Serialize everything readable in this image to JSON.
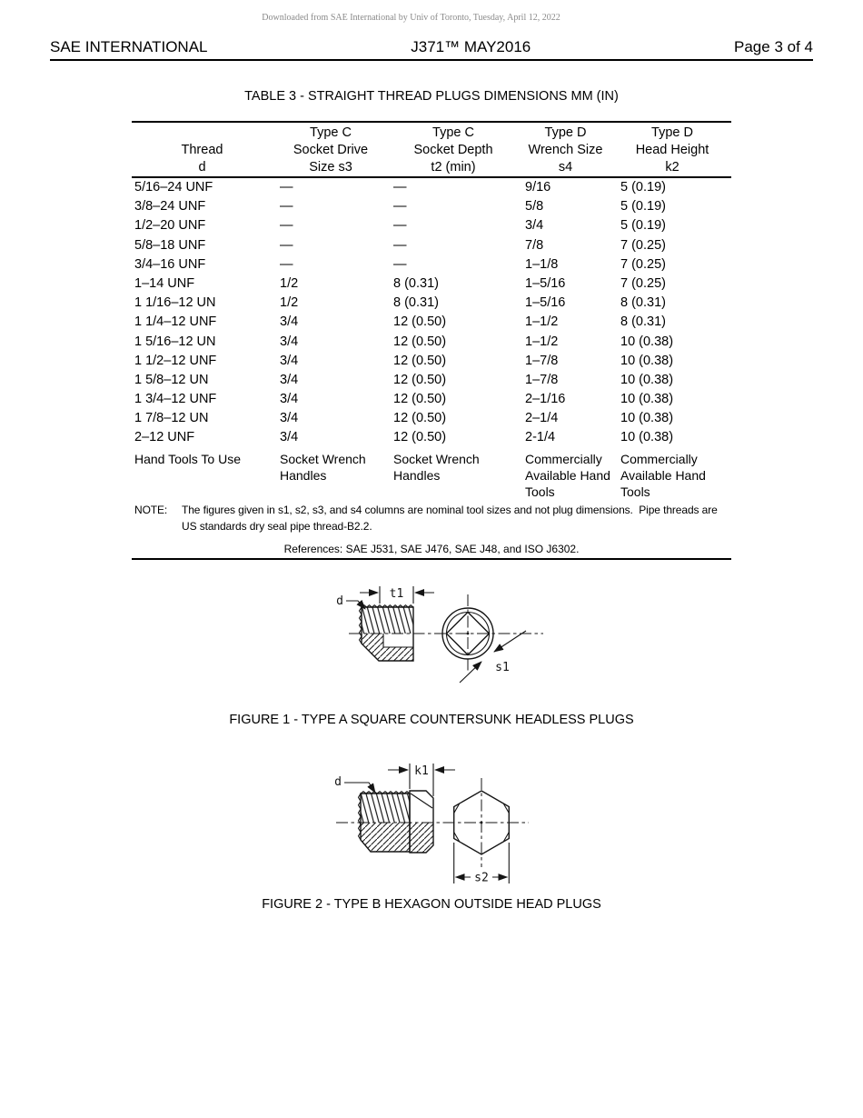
{
  "watermark": "Downloaded from SAE International by Univ of Toronto, Tuesday, April 12, 2022",
  "page_header": {
    "left": "SAE INTERNATIONAL",
    "center": "J371™ MAY2016",
    "right": "Page 3 of 4"
  },
  "table": {
    "title": "TABLE 3 - STRAIGHT THREAD PLUGS DIMENSIONS MM (IN)",
    "columns": [
      {
        "lines": [
          "",
          "Thread",
          "d"
        ]
      },
      {
        "lines": [
          "Type C",
          "Socket Drive",
          "Size s3"
        ]
      },
      {
        "lines": [
          "Type C",
          "Socket Depth",
          "t2 (min)"
        ]
      },
      {
        "lines": [
          "Type D",
          "Wrench Size",
          "s4"
        ]
      },
      {
        "lines": [
          "Type D",
          "Head Height",
          "k2"
        ]
      }
    ],
    "rows": [
      [
        "5/16–24 UNF",
        "—",
        "—",
        "9/16",
        "5 (0.19)"
      ],
      [
        "3/8–24 UNF",
        "—",
        "—",
        "5/8",
        "5 (0.19)"
      ],
      [
        "1/2–20 UNF",
        "—",
        "—",
        "3/4",
        "5 (0.19)"
      ],
      [
        "5/8–18 UNF",
        "—",
        "—",
        "7/8",
        "7 (0.25)"
      ],
      [
        "3/4–16 UNF",
        "—",
        "—",
        "1–1/8",
        "7 (0.25)"
      ],
      [
        "1–14 UNF",
        "1/2",
        "8 (0.31)",
        "1–5/16",
        "7 (0.25)"
      ],
      [
        "1 1/16–12 UN",
        "1/2",
        "8 (0.31)",
        "1–5/16",
        "8 (0.31)"
      ],
      [
        "1 1/4–12 UNF",
        "3/4",
        "12 (0.50)",
        "1–1/2",
        "8 (0.31)"
      ],
      [
        "1 5/16–12 UN",
        "3/4",
        "12 (0.50)",
        "1–1/2",
        "10 (0.38)"
      ],
      [
        "1 1/2–12 UNF",
        "3/4",
        "12 (0.50)",
        "1–7/8",
        "10 (0.38)"
      ],
      [
        "1 5/8–12 UN",
        "3/4",
        "12 (0.50)",
        "1–7/8",
        "10 (0.38)"
      ],
      [
        "1 3/4–12 UNF",
        "3/4",
        "12 (0.50)",
        "2–1/16",
        "10 (0.38)"
      ],
      [
        "1 7/8–12 UN",
        "3/4",
        "12 (0.50)",
        "2–1/4",
        "10 (0.38)"
      ],
      [
        "2–12 UNF",
        "3/4",
        "12 (0.50)",
        "2-1/4",
        "10 (0.38)"
      ]
    ],
    "tool_row": [
      "Hand Tools To Use",
      "Socket Wrench Handles",
      "Socket Wrench Handles",
      "Commercially Available Hand Tools",
      "Commercially Available Hand Tools"
    ],
    "note_label": "NOTE:",
    "note_text": "The figures given in s1, s2, s3, and s4 columns are nominal tool sizes and not plug dimensions.  Pipe threads are US standards dry seal pipe thread-B2.2.",
    "references": "References: SAE J531, SAE J476, SAE J48, and ISO J6302."
  },
  "figure1": {
    "caption": "FIGURE 1 - TYPE A SQUARE COUNTERSUNK HEADLESS PLUGS",
    "labels": {
      "d": "d",
      "t1": "t1",
      "s1": "s1"
    }
  },
  "figure2": {
    "caption": "FIGURE 2 - TYPE B HEXAGON OUTSIDE HEAD PLUGS",
    "labels": {
      "d": "d",
      "k1": "k1",
      "s2": "s2"
    }
  }
}
